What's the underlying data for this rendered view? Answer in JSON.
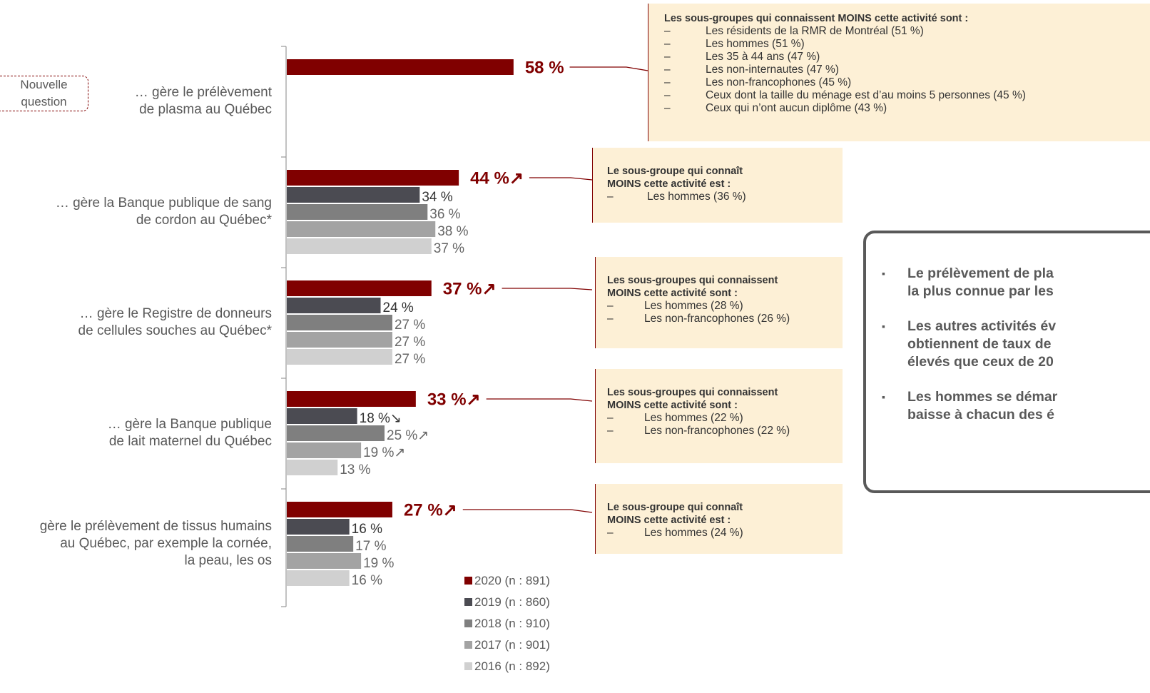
{
  "chart_data": {
    "type": "bar",
    "orientation": "horizontal",
    "categories": [
      "… gère le prélèvement\nde plasma au Québec",
      "… gère la Banque publique de sang\nde cordon au Québec*",
      "… gère le Registre de donneurs\nde cellules souches au Québec*",
      "… gère la Banque publique\nde lait maternel du Québec",
      "gère le prélèvement de tissus humains\nau Québec, par exemple la cornée,\nla peau, les os"
    ],
    "series": [
      {
        "name": "2020 (n : 891)",
        "color": "#800000",
        "values": [
          58,
          44,
          37,
          33,
          27
        ],
        "value_labels": [
          "58 %",
          "44 %↗",
          "37 %↗",
          "33 %↗",
          "27 %↗"
        ]
      },
      {
        "name": "2019 (n : 860)",
        "color": "#4b4b52",
        "values": [
          null,
          34,
          24,
          18,
          16
        ],
        "value_labels": [
          null,
          "34 %",
          "24 %",
          "18 %↘",
          "16 %"
        ]
      },
      {
        "name": "2018 (n : 910)",
        "color": "#7f7f7f",
        "values": [
          null,
          36,
          27,
          25,
          17
        ],
        "value_labels": [
          null,
          "36 %",
          "27 %",
          "25 %↗",
          "17 %"
        ]
      },
      {
        "name": "2017 (n : 901)",
        "color": "#a3a3a3",
        "values": [
          null,
          38,
          27,
          19,
          19
        ],
        "value_labels": [
          null,
          "38 %",
          "27 %",
          "19 %↗",
          "19 %"
        ]
      },
      {
        "name": "2016 (n : 892)",
        "color": "#d0d0d0",
        "values": [
          null,
          37,
          27,
          13,
          16
        ],
        "value_labels": [
          null,
          "37 %",
          "27 %",
          "13 %",
          "16 %"
        ]
      }
    ],
    "annotations": [
      {
        "title": "Les sous-groupes qui connaissent MOINS cette activité sont :",
        "items": [
          "Les résidents de la RMR de Montréal (51 %)",
          "Les hommes (51 %)",
          "Les 35 à 44 ans (47 %)",
          "Les non-internautes (47 %)",
          "Les non-francophones (45 %)",
          "Ceux dont la taille du ménage est d’au moins 5 personnes (45 %)",
          "Ceux qui n’ont aucun diplôme (43 %)"
        ]
      },
      {
        "title": "Le sous-groupe qui connaît\nMOINS cette activité est :",
        "items": [
          "Les hommes (36 %)"
        ]
      },
      {
        "title": "Les sous-groupes qui connaissent\nMOINS cette activité sont :",
        "items": [
          "Les hommes (28 %)",
          "Les non-francophones (26 %)"
        ]
      },
      {
        "title": "Les sous-groupes qui connaissent\nMOINS cette activité sont :",
        "items": [
          "Les hommes (22 %)",
          "Les non-francophones (22 %)"
        ]
      },
      {
        "title": "Le sous-groupe qui connaît\nMOINS cette activité est :",
        "items": [
          "Les hommes (24 %)"
        ]
      }
    ]
  },
  "badge": "Nouvelle\nquestion",
  "summary": {
    "items": [
      "Le prélèvement de pla\nla plus connue par les",
      "Les autres activités év\nobtiennent de taux de\nélevés que ceux de 20",
      "Les hommes se démar\nbaisse à chacun des é"
    ]
  }
}
